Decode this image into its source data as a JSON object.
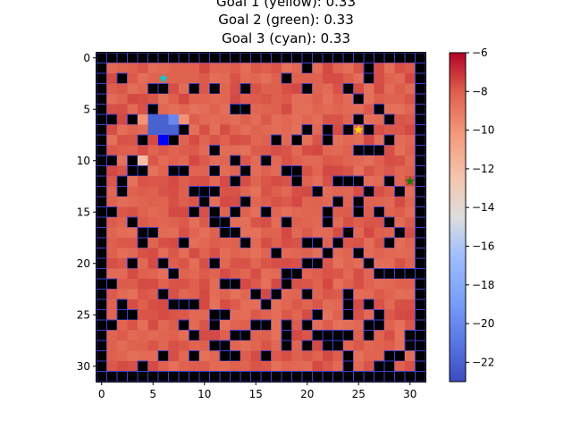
{
  "title_lines": [
    "Goal 1 (yellow): 0.33",
    "Goal 2 (green): 0.33",
    "Goal 3 (cyan): 0.33"
  ],
  "chart_data": {
    "type": "heatmap",
    "grid_size": [
      32,
      32
    ],
    "colormap": "coolwarm",
    "x_ticks": [
      0,
      5,
      10,
      15,
      20,
      25,
      30
    ],
    "y_ticks": [
      0,
      5,
      10,
      15,
      20,
      25,
      30
    ],
    "x_tick_labels": [
      "0",
      "5",
      "10",
      "15",
      "20",
      "25",
      "30"
    ],
    "y_tick_labels": [
      "0",
      "5",
      "10",
      "15",
      "20",
      "25",
      "30"
    ],
    "colorbar": {
      "range": [
        -23,
        -6
      ],
      "ticks": [
        -6,
        -8,
        -10,
        -12,
        -14,
        -16,
        -18,
        -20,
        -22
      ],
      "tick_labels": [
        "−6",
        "−8",
        "−10",
        "−12",
        "−14",
        "−16",
        "−18",
        "−20",
        "−22"
      ]
    },
    "goals": [
      {
        "name": "Goal 1",
        "color": "#FFD700",
        "x": 25,
        "y": 7,
        "probability": 0.33
      },
      {
        "name": "Goal 2",
        "color": "#008000",
        "x": 30,
        "y": 12,
        "probability": 0.33
      },
      {
        "name": "Goal 3",
        "color": "#00CED1",
        "x": 6,
        "y": 2,
        "probability": 0.33
      }
    ],
    "agent": {
      "color": "#0000FF",
      "x": 6,
      "y": 8
    },
    "wall_value_color": "#000000",
    "wall_border_color": "#4040D0",
    "default_value": -7.5,
    "low_value_cells": [
      {
        "x": 5,
        "y": 6,
        "v": -22
      },
      {
        "x": 6,
        "y": 6,
        "v": -22
      },
      {
        "x": 5,
        "y": 7,
        "v": -22
      },
      {
        "x": 6,
        "y": 7,
        "v": -22
      },
      {
        "x": 7,
        "y": 7,
        "v": -22
      },
      {
        "x": 7,
        "y": 6,
        "v": -20
      },
      {
        "x": 6,
        "y": 8,
        "v": -21
      },
      {
        "x": 4,
        "y": 6,
        "v": -10
      },
      {
        "x": 8,
        "y": 6,
        "v": -10
      },
      {
        "x": 8,
        "y": 7,
        "v": -10
      },
      {
        "x": 4,
        "y": 10,
        "v": -12
      }
    ],
    "walls": [
      [
        20,
        1
      ],
      [
        26,
        1
      ],
      [
        2,
        2
      ],
      [
        18,
        2
      ],
      [
        26,
        2
      ],
      [
        5,
        3
      ],
      [
        6,
        3
      ],
      [
        9,
        3
      ],
      [
        11,
        3
      ],
      [
        14,
        3
      ],
      [
        20,
        3
      ],
      [
        24,
        3
      ],
      [
        25,
        4
      ],
      [
        5,
        5
      ],
      [
        13,
        5
      ],
      [
        14,
        5
      ],
      [
        27,
        5
      ],
      [
        1,
        6
      ],
      [
        3,
        6
      ],
      [
        25,
        6
      ],
      [
        28,
        6
      ],
      [
        8,
        7
      ],
      [
        24,
        7
      ],
      [
        26,
        7
      ],
      [
        20,
        7
      ],
      [
        22,
        7
      ],
      [
        19,
        8
      ],
      [
        4,
        8
      ],
      [
        7,
        8
      ],
      [
        17,
        8
      ],
      [
        22,
        8
      ],
      [
        28,
        8
      ],
      [
        11,
        9
      ],
      [
        25,
        9
      ],
      [
        26,
        9
      ],
      [
        27,
        9
      ],
      [
        1,
        10
      ],
      [
        3,
        10
      ],
      [
        13,
        10
      ],
      [
        16,
        10
      ],
      [
        3,
        11
      ],
      [
        4,
        11
      ],
      [
        7,
        11
      ],
      [
        8,
        11
      ],
      [
        11,
        11
      ],
      [
        14,
        11
      ],
      [
        18,
        11
      ],
      [
        19,
        11
      ],
      [
        2,
        12
      ],
      [
        13,
        12
      ],
      [
        19,
        12
      ],
      [
        23,
        12
      ],
      [
        24,
        12
      ],
      [
        25,
        12
      ],
      [
        28,
        12
      ],
      [
        2,
        13
      ],
      [
        9,
        13
      ],
      [
        10,
        13
      ],
      [
        11,
        13
      ],
      [
        21,
        13
      ],
      [
        26,
        13
      ],
      [
        29,
        13
      ],
      [
        25,
        14
      ],
      [
        10,
        14
      ],
      [
        14,
        14
      ],
      [
        23,
        14
      ],
      [
        1,
        15
      ],
      [
        9,
        15
      ],
      [
        11,
        15
      ],
      [
        13,
        15
      ],
      [
        16,
        15
      ],
      [
        22,
        15
      ],
      [
        25,
        15
      ],
      [
        27,
        15
      ],
      [
        3,
        16
      ],
      [
        11,
        16
      ],
      [
        12,
        16
      ],
      [
        18,
        16
      ],
      [
        22,
        16
      ],
      [
        28,
        16
      ],
      [
        4,
        17
      ],
      [
        5,
        17
      ],
      [
        12,
        17
      ],
      [
        13,
        17
      ],
      [
        24,
        17
      ],
      [
        29,
        17
      ],
      [
        4,
        18
      ],
      [
        8,
        18
      ],
      [
        14,
        18
      ],
      [
        20,
        18
      ],
      [
        21,
        18
      ],
      [
        23,
        18
      ],
      [
        28,
        18
      ],
      [
        17,
        19
      ],
      [
        22,
        19
      ],
      [
        25,
        19
      ],
      [
        31,
        19
      ],
      [
        3,
        20
      ],
      [
        6,
        20
      ],
      [
        11,
        20
      ],
      [
        20,
        20
      ],
      [
        21,
        20
      ],
      [
        26,
        20
      ],
      [
        7,
        21
      ],
      [
        18,
        21
      ],
      [
        19,
        21
      ],
      [
        27,
        21
      ],
      [
        28,
        21
      ],
      [
        29,
        21
      ],
      [
        30,
        21
      ],
      [
        1,
        22
      ],
      [
        12,
        22
      ],
      [
        13,
        22
      ],
      [
        18,
        22
      ],
      [
        17,
        23
      ],
      [
        6,
        23
      ],
      [
        15,
        23
      ],
      [
        20,
        23
      ],
      [
        24,
        23
      ],
      [
        2,
        24
      ],
      [
        7,
        24
      ],
      [
        8,
        24
      ],
      [
        9,
        24
      ],
      [
        16,
        24
      ],
      [
        24,
        24
      ],
      [
        26,
        24
      ],
      [
        2,
        25
      ],
      [
        3,
        25
      ],
      [
        11,
        25
      ],
      [
        12,
        25
      ],
      [
        21,
        25
      ],
      [
        24,
        25
      ],
      [
        27,
        25
      ],
      [
        1,
        26
      ],
      [
        8,
        26
      ],
      [
        11,
        26
      ],
      [
        15,
        26
      ],
      [
        16,
        26
      ],
      [
        18,
        26
      ],
      [
        20,
        26
      ],
      [
        26,
        26
      ],
      [
        27,
        26
      ],
      [
        14,
        27
      ],
      [
        9,
        27
      ],
      [
        13,
        27
      ],
      [
        18,
        27
      ],
      [
        21,
        27
      ],
      [
        22,
        27
      ],
      [
        23,
        27
      ],
      [
        24,
        27
      ],
      [
        26,
        27
      ],
      [
        30,
        27
      ],
      [
        11,
        28
      ],
      [
        12,
        28
      ],
      [
        18,
        28
      ],
      [
        20,
        28
      ],
      [
        22,
        28
      ],
      [
        23,
        28
      ],
      [
        30,
        28
      ],
      [
        6,
        29
      ],
      [
        9,
        29
      ],
      [
        13,
        29
      ],
      [
        24,
        29
      ],
      [
        28,
        29
      ],
      [
        29,
        29
      ],
      [
        4,
        30
      ],
      [
        24,
        30
      ],
      [
        27,
        30
      ],
      [
        28,
        30
      ],
      [
        12,
        29
      ],
      [
        16,
        29
      ]
    ]
  }
}
